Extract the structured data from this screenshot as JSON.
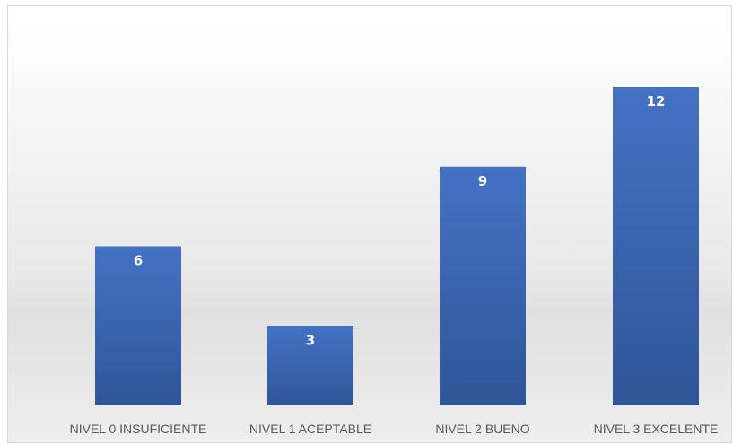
{
  "chart_data": {
    "type": "bar",
    "categories": [
      "NIVEL 0 INSUFICIENTE",
      "NIVEL 1 ACEPTABLE",
      "NIVEL 2 BUENO",
      "NIVEL 3 EXCELENTE"
    ],
    "values": [
      6,
      3,
      9,
      12
    ],
    "title": "",
    "xlabel": "",
    "ylabel": "",
    "ylim": [
      0,
      12
    ],
    "grid": false,
    "legend": "none",
    "data_labels": "inside-top",
    "colors": {
      "bar_top": "#4472c4",
      "bar_bottom": "#2f5597",
      "label": "#ffffff",
      "axis_text": "#595959"
    }
  }
}
